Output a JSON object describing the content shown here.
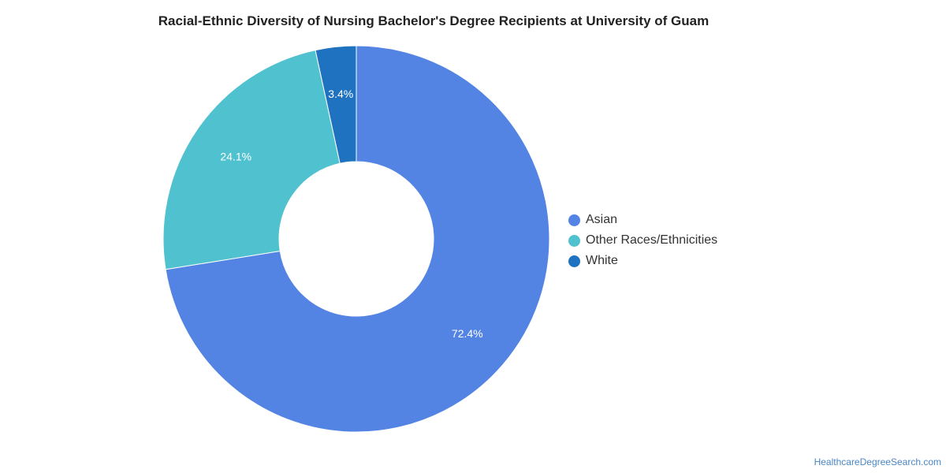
{
  "source": "HealthcareDegreeSearch.com",
  "chart_data": {
    "type": "pie",
    "title": "Racial-Ethnic Diversity of Nursing Bachelor's Degree Recipients at University of Guam",
    "donut": true,
    "legend_position": "right",
    "slices": [
      {
        "name": "Asian",
        "value": 72.4,
        "label": "72.4%",
        "color": "#5384e3"
      },
      {
        "name": "Other Races/Ethnicities",
        "value": 24.1,
        "label": "24.1%",
        "color": "#50c1ce"
      },
      {
        "name": "White",
        "value": 3.4,
        "label": "3.4%",
        "color": "#1f72bf"
      }
    ]
  }
}
